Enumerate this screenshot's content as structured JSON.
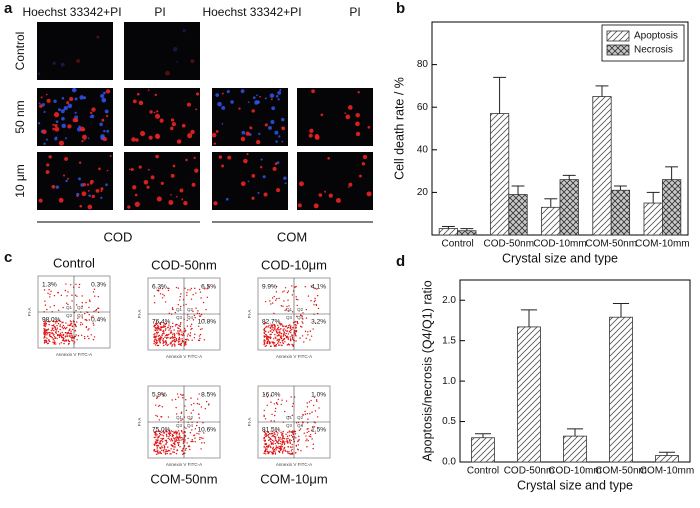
{
  "panel_labels": [
    "a",
    "b",
    "c",
    "d"
  ],
  "microscopy": {
    "column_labels": [
      "Hoechst 33342+PI",
      "PI",
      "Hoechst 33342+PI",
      "PI"
    ],
    "row_labels": [
      "Control",
      "50 nm",
      "10 μm"
    ],
    "group_labels": [
      "COD",
      "COM"
    ]
  },
  "flow_cytometry": {
    "x_label": "Annexin V FITC-A",
    "y_label": "PI-A",
    "quadrant_labels": [
      "Q1",
      "Q2",
      "Q3",
      "Q4"
    ],
    "plots": [
      {
        "title": "Control",
        "q1": "1.3%",
        "q2": "0.3%",
        "q3": "98.0%",
        "q4": "0.4%"
      },
      {
        "title": "COD-50nm",
        "q1": "6.3%",
        "q2": "6.5%",
        "q3": "76.4%",
        "q4": "10.8%"
      },
      {
        "title": "COD-10μm",
        "q1": "9.9%",
        "q2": "4.1%",
        "q3": "82.7%",
        "q4": "3.2%"
      },
      {
        "title": "COM-50nm",
        "q1": "5.9%",
        "q2": "8.5%",
        "q3": "75.0%",
        "q4": "10.6%"
      },
      {
        "title": "COM-10μm",
        "q1": "16.0%",
        "q2": "1.0%",
        "q3": "81.5%",
        "q4": "1.5%"
      }
    ]
  },
  "chart_data": [
    {
      "type": "bar",
      "x_label": "Crystal size and type",
      "y_label": "Cell death rate / %",
      "categories": [
        "Control",
        "COD-50nm",
        "COD-10mm",
        "COM-50nm",
        "COM-10mm"
      ],
      "series": [
        {
          "name": "Apoptosis",
          "color": "#555555",
          "pattern": "diagonal",
          "values": [
            3,
            57,
            13,
            65,
            15
          ],
          "errors": [
            1,
            17,
            4,
            5,
            5
          ]
        },
        {
          "name": "Necrosis",
          "color": "#333333",
          "pattern": "crosshatch",
          "values": [
            2,
            19,
            26,
            21,
            26
          ],
          "errors": [
            1,
            4,
            2,
            2,
            6
          ]
        }
      ],
      "ylim": [
        0,
        100
      ],
      "yticks": [
        20,
        40,
        60,
        80
      ],
      "grid": false,
      "legend": "upper right"
    },
    {
      "type": "bar",
      "x_label": "Crystal size and type",
      "y_label": "Apoptosis/necrosis (Q4/Q1) ratio",
      "categories": [
        "Control",
        "COD-50nm",
        "COD-10mm",
        "COM-50nm",
        "COM-10mm"
      ],
      "series": [
        {
          "color": "#555555",
          "pattern": "diagonal",
          "values": [
            0.3,
            1.67,
            0.32,
            1.79,
            0.08
          ],
          "errors": [
            0.05,
            0.21,
            0.09,
            0.17,
            0.04
          ]
        }
      ],
      "ylim": [
        0,
        2.25
      ],
      "yticks": [
        {
          "value": 0,
          "label": "0.0"
        },
        0.5,
        {
          "value": 1,
          "label": "1.0"
        },
        1.5,
        {
          "value": 2,
          "label": "2.0"
        }
      ],
      "grid": false
    }
  ]
}
